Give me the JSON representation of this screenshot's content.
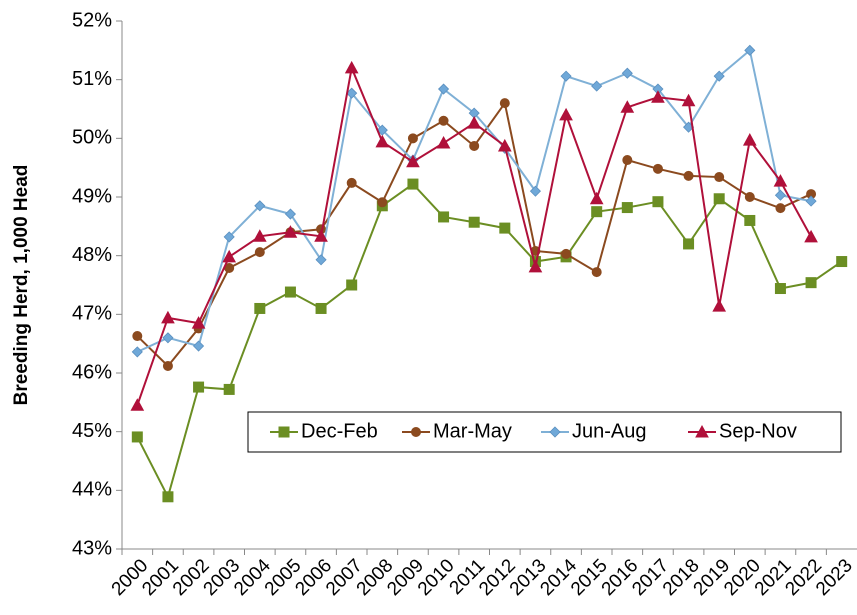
{
  "chart_data": {
    "type": "line",
    "y_axis_label": "Breeding Herd, 1,000 Head",
    "categories": [
      "2000",
      "2001",
      "2002",
      "2003",
      "2004",
      "2005",
      "2006",
      "2007",
      "2008",
      "2009",
      "2010",
      "2011",
      "2012",
      "2013",
      "2014",
      "2015",
      "2016",
      "2017",
      "2018",
      "2019",
      "2020",
      "2021",
      "2022",
      "2023"
    ],
    "series": [
      {
        "name": "Dec-Feb",
        "color": "#6b8e23",
        "marker": "square",
        "values": [
          44.91,
          43.89,
          45.76,
          45.72,
          47.1,
          47.38,
          47.1,
          47.5,
          48.85,
          49.22,
          48.66,
          48.57,
          48.47,
          47.9,
          47.98,
          48.75,
          48.82,
          48.92,
          48.2,
          48.97,
          48.6,
          47.44,
          47.54,
          47.9
        ]
      },
      {
        "name": "Mar-May",
        "color": "#8b4a1f",
        "marker": "circle",
        "values": [
          46.63,
          46.12,
          46.76,
          47.79,
          48.06,
          48.4,
          48.45,
          49.24,
          48.91,
          50.0,
          50.3,
          49.87,
          50.6,
          48.08,
          48.03,
          47.72,
          49.63,
          49.48,
          49.36,
          49.34,
          49.0,
          48.81,
          49.05,
          null
        ]
      },
      {
        "name": "Jun-Aug",
        "color": "#7fb0d6",
        "marker": "diamond",
        "values": [
          46.36,
          46.6,
          46.46,
          48.32,
          48.85,
          48.71,
          47.93,
          50.77,
          50.14,
          49.63,
          50.84,
          50.43,
          49.83,
          49.1,
          51.06,
          50.89,
          51.11,
          50.84,
          50.19,
          51.06,
          51.5,
          49.03,
          48.93,
          null
        ]
      },
      {
        "name": "Sep-Nov",
        "color": "#b0103a",
        "marker": "triangle",
        "values": [
          45.45,
          46.94,
          46.85,
          47.98,
          48.33,
          48.4,
          48.33,
          51.2,
          49.94,
          49.6,
          49.92,
          50.26,
          49.87,
          47.81,
          50.4,
          48.97,
          50.53,
          50.7,
          50.64,
          47.14,
          49.97,
          49.27,
          48.32,
          null
        ]
      }
    ],
    "ylim": [
      43,
      52
    ],
    "yticks": [
      {
        "value": 43,
        "label": "43%"
      },
      {
        "value": 44,
        "label": "44%"
      },
      {
        "value": 45,
        "label": "45%"
      },
      {
        "value": 46,
        "label": "46%"
      },
      {
        "value": 47,
        "label": "47%"
      },
      {
        "value": 48,
        "label": "48%"
      },
      {
        "value": 49,
        "label": "49%"
      },
      {
        "value": 50,
        "label": "50%"
      },
      {
        "value": 51,
        "label": "51%"
      },
      {
        "value": 52,
        "label": "52%"
      }
    ],
    "grid": false,
    "legend": "inside-bottom-right"
  }
}
